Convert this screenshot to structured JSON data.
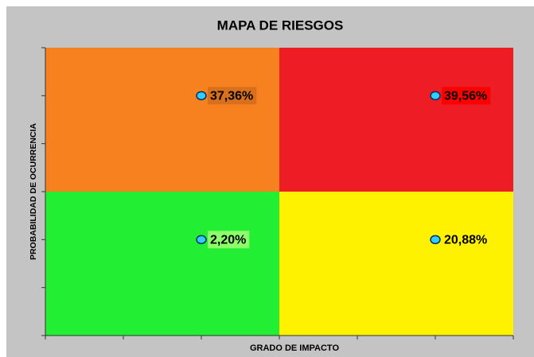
{
  "chart_data": {
    "type": "scatter",
    "title": "MAPA DE RIESGOS",
    "xlabel": "GRADO DE IMPACTO",
    "ylabel": "PROBABILIDAD  DE OCURRENCIA",
    "xlim": [
      0,
      6
    ],
    "xticks": [
      0,
      1,
      2,
      3,
      4,
      5,
      6
    ],
    "ylim": [
      0,
      6
    ],
    "yticks": [
      0,
      1,
      2,
      3,
      4,
      5,
      6
    ],
    "quadrants": [
      {
        "color": "#f7801f",
        "xlim": [
          0,
          3
        ],
        "ylim": [
          3,
          6
        ]
      },
      {
        "color": "#ee1c25",
        "xlim": [
          3,
          6
        ],
        "ylim": [
          3,
          6
        ]
      },
      {
        "color": "#22ee33",
        "xlim": [
          0,
          3
        ],
        "ylim": [
          0,
          3
        ]
      },
      {
        "color": "#fff200",
        "xlim": [
          3,
          6
        ],
        "ylim": [
          0,
          3
        ]
      }
    ],
    "marker_color": "#33ccff",
    "points": [
      {
        "x": 2,
        "y": 5,
        "value": 37.36,
        "value_label": "37,36%",
        "label_color": "#d9701c"
      },
      {
        "x": 5,
        "y": 5,
        "value": 39.56,
        "value_label": "39,56%",
        "label_color": "#ff0000"
      },
      {
        "x": 2,
        "y": 2,
        "value": 2.2,
        "value_label": "2,20%",
        "label_color": "#8cff6a"
      },
      {
        "x": 5,
        "y": 2,
        "value": 20.88,
        "value_label": "20,88%",
        "label_color": "#fff200"
      }
    ]
  }
}
